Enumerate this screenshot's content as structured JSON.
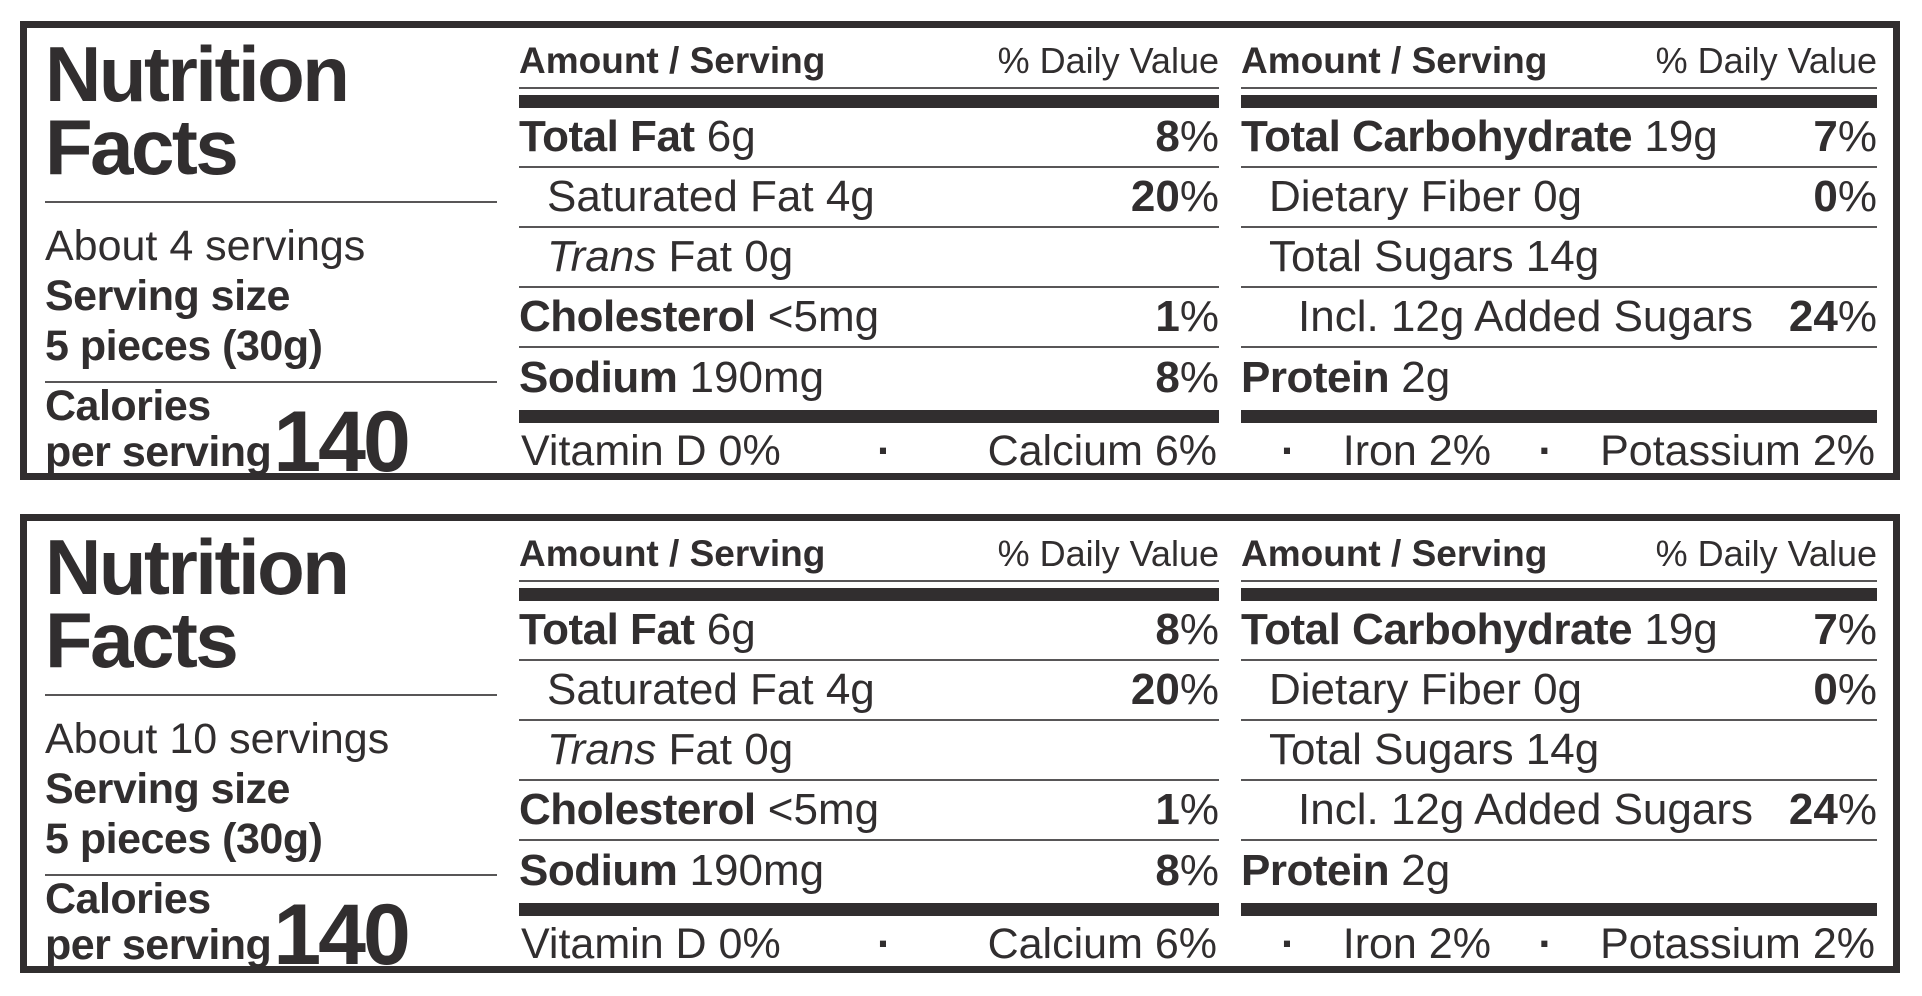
{
  "colors": {
    "ink": "#312e2f",
    "hairline": "#585657",
    "background": "#ffffff"
  },
  "labels": [
    {
      "title_lines": [
        "Nutrition",
        "Facts"
      ],
      "servings_text": "About 4 servings",
      "serving_size_lines": [
        "Serving size",
        "5 pieces (30g)"
      ],
      "calories_label_lines": [
        "Calories",
        "per serving"
      ],
      "calories_value": "140",
      "columns": [
        {
          "header_left": "Amount / Serving",
          "header_right": "% Daily Value",
          "rows": [
            {
              "indent": 0,
              "segments": [
                {
                  "text": "Total Fat",
                  "style": "bold"
                },
                {
                  "text": " 6g",
                  "style": "regular"
                }
              ],
              "dv": {
                "num": "8",
                "sym": "%"
              }
            },
            {
              "indent": 1,
              "segments": [
                {
                  "text": "Saturated Fat 4g",
                  "style": "regular"
                }
              ],
              "dv": {
                "num": "20",
                "sym": "%"
              }
            },
            {
              "indent": 1,
              "segments": [
                {
                  "text": "Trans",
                  "style": "italic"
                },
                {
                  "text": " Fat 0g",
                  "style": "regular"
                }
              ],
              "dv": null
            },
            {
              "indent": 0,
              "segments": [
                {
                  "text": "Cholesterol",
                  "style": "bold"
                },
                {
                  "text": " <5mg",
                  "style": "regular"
                }
              ],
              "dv": {
                "num": "1",
                "sym": "%"
              }
            },
            {
              "indent": 0,
              "segments": [
                {
                  "text": "Sodium",
                  "style": "bold"
                },
                {
                  "text": " 190mg",
                  "style": "regular"
                }
              ],
              "dv": {
                "num": "8",
                "sym": "%"
              }
            }
          ],
          "micronutrients": [
            "Vitamin D 0%",
            "·",
            "Calcium 6%"
          ]
        },
        {
          "header_left": "Amount / Serving",
          "header_right": "% Daily Value",
          "rows": [
            {
              "indent": 0,
              "segments": [
                {
                  "text": "Total Carbohydrate",
                  "style": "bold"
                },
                {
                  "text": " 19g",
                  "style": "regular"
                }
              ],
              "dv": {
                "num": "7",
                "sym": "%"
              }
            },
            {
              "indent": 1,
              "segments": [
                {
                  "text": "Dietary Fiber 0g",
                  "style": "regular"
                }
              ],
              "dv": {
                "num": "0",
                "sym": "%"
              }
            },
            {
              "indent": 1,
              "segments": [
                {
                  "text": "Total Sugars 14g",
                  "style": "regular"
                }
              ],
              "dv": null
            },
            {
              "indent": 2,
              "segments": [
                {
                  "text": "Incl. 12g Added Sugars",
                  "style": "regular"
                }
              ],
              "dv": {
                "num": "24",
                "sym": "%"
              }
            },
            {
              "indent": 0,
              "segments": [
                {
                  "text": "Protein",
                  "style": "bold"
                },
                {
                  "text": " 2g",
                  "style": "regular"
                }
              ],
              "dv": null
            }
          ],
          "micronutrients": [
            "·",
            "Iron 2%",
            "·",
            "Potassium 2%"
          ]
        }
      ]
    },
    {
      "title_lines": [
        "Nutrition",
        "Facts"
      ],
      "servings_text": "About 10 servings",
      "serving_size_lines": [
        "Serving size",
        "5 pieces (30g)"
      ],
      "calories_label_lines": [
        "Calories",
        "per serving"
      ],
      "calories_value": "140",
      "columns": [
        {
          "header_left": "Amount / Serving",
          "header_right": "% Daily Value",
          "rows": [
            {
              "indent": 0,
              "segments": [
                {
                  "text": "Total Fat",
                  "style": "bold"
                },
                {
                  "text": " 6g",
                  "style": "regular"
                }
              ],
              "dv": {
                "num": "8",
                "sym": "%"
              }
            },
            {
              "indent": 1,
              "segments": [
                {
                  "text": "Saturated Fat 4g",
                  "style": "regular"
                }
              ],
              "dv": {
                "num": "20",
                "sym": "%"
              }
            },
            {
              "indent": 1,
              "segments": [
                {
                  "text": "Trans",
                  "style": "italic"
                },
                {
                  "text": " Fat 0g",
                  "style": "regular"
                }
              ],
              "dv": null
            },
            {
              "indent": 0,
              "segments": [
                {
                  "text": "Cholesterol",
                  "style": "bold"
                },
                {
                  "text": " <5mg",
                  "style": "regular"
                }
              ],
              "dv": {
                "num": "1",
                "sym": "%"
              }
            },
            {
              "indent": 0,
              "segments": [
                {
                  "text": "Sodium",
                  "style": "bold"
                },
                {
                  "text": " 190mg",
                  "style": "regular"
                }
              ],
              "dv": {
                "num": "8",
                "sym": "%"
              }
            }
          ],
          "micronutrients": [
            "Vitamin D 0%",
            "·",
            "Calcium 6%"
          ]
        },
        {
          "header_left": "Amount / Serving",
          "header_right": "% Daily Value",
          "rows": [
            {
              "indent": 0,
              "segments": [
                {
                  "text": "Total Carbohydrate",
                  "style": "bold"
                },
                {
                  "text": " 19g",
                  "style": "regular"
                }
              ],
              "dv": {
                "num": "7",
                "sym": "%"
              }
            },
            {
              "indent": 1,
              "segments": [
                {
                  "text": "Dietary Fiber 0g",
                  "style": "regular"
                }
              ],
              "dv": {
                "num": "0",
                "sym": "%"
              }
            },
            {
              "indent": 1,
              "segments": [
                {
                  "text": "Total Sugars 14g",
                  "style": "regular"
                }
              ],
              "dv": null
            },
            {
              "indent": 2,
              "segments": [
                {
                  "text": "Incl. 12g Added Sugars",
                  "style": "regular"
                }
              ],
              "dv": {
                "num": "24",
                "sym": "%"
              }
            },
            {
              "indent": 0,
              "segments": [
                {
                  "text": "Protein",
                  "style": "bold"
                },
                {
                  "text": " 2g",
                  "style": "regular"
                }
              ],
              "dv": null
            }
          ],
          "micronutrients": [
            "·",
            "Iron 2%",
            "·",
            "Potassium 2%"
          ]
        }
      ]
    }
  ]
}
